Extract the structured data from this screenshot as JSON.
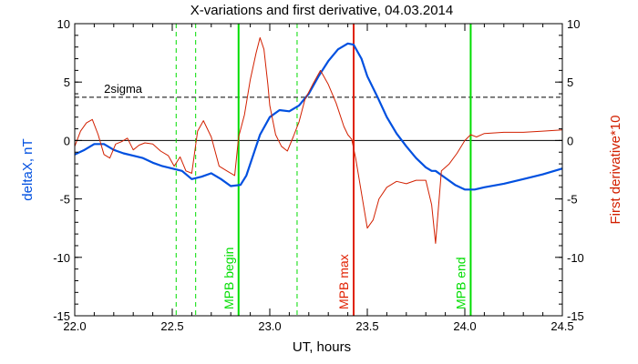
{
  "chart_data": {
    "type": "line",
    "title": "X-variations and first derivative, 04.03.2014",
    "xlabel": "UT, hours",
    "ylabel_left": "deltaX, nT",
    "ylabel_right": "First derivative*10",
    "xlim": [
      22.0,
      24.5
    ],
    "ylim": [
      -15,
      10
    ],
    "x_ticks": [
      "22.0",
      "22.5",
      "23.0",
      "23.5",
      "24.0",
      "24.5"
    ],
    "y_ticks_left": [
      "10",
      "5",
      "0",
      "-5",
      "-10",
      "-15"
    ],
    "y_ticks_right": [
      "10",
      "5",
      "0",
      "-5",
      "-10",
      "-15"
    ],
    "sigma": {
      "label": "2sigma",
      "value": 3.7
    },
    "zero_line": 0,
    "colors": {
      "deltaX": "#0050e0",
      "derivative": "#d22000",
      "green": "#00dd00",
      "red": "#e02000"
    },
    "series": [
      {
        "key": "deltaX",
        "axis": "left",
        "x": [
          22.0,
          22.05,
          22.1,
          22.15,
          22.2,
          22.25,
          22.3,
          22.35,
          22.4,
          22.45,
          22.5,
          22.55,
          22.6,
          22.65,
          22.7,
          22.75,
          22.8,
          22.85,
          22.88,
          22.92,
          22.95,
          23.0,
          23.05,
          23.1,
          23.15,
          23.2,
          23.25,
          23.3,
          23.35,
          23.4,
          23.43,
          23.47,
          23.5,
          23.55,
          23.6,
          23.65,
          23.7,
          23.75,
          23.8,
          23.83,
          23.85,
          23.9,
          23.95,
          24.0,
          24.05,
          24.1,
          24.2,
          24.3,
          24.4,
          24.5
        ],
        "y": [
          -1.2,
          -0.8,
          -0.3,
          -0.3,
          -0.8,
          -1.1,
          -1.3,
          -1.5,
          -1.9,
          -2.2,
          -2.4,
          -2.6,
          -3.3,
          -3.1,
          -2.8,
          -3.3,
          -3.9,
          -3.8,
          -3.0,
          -1.0,
          0.5,
          2.0,
          2.6,
          2.5,
          3.0,
          4.0,
          5.5,
          6.8,
          7.8,
          8.3,
          8.2,
          7.0,
          5.5,
          3.8,
          2.0,
          0.6,
          -0.5,
          -1.5,
          -2.3,
          -2.6,
          -2.6,
          -3.2,
          -3.8,
          -4.2,
          -4.2,
          -4.0,
          -3.7,
          -3.3,
          -2.9,
          -2.4
        ]
      },
      {
        "key": "derivative",
        "axis": "right",
        "x": [
          22.0,
          22.03,
          22.06,
          22.09,
          22.12,
          22.15,
          22.18,
          22.21,
          22.24,
          22.27,
          22.3,
          22.33,
          22.36,
          22.4,
          22.44,
          22.48,
          22.51,
          22.54,
          22.57,
          22.6,
          22.63,
          22.66,
          22.7,
          22.74,
          22.78,
          22.82,
          22.84,
          22.87,
          22.9,
          22.93,
          22.95,
          22.97,
          22.99,
          23.0,
          23.03,
          23.06,
          23.09,
          23.12,
          23.15,
          23.18,
          23.22,
          23.26,
          23.3,
          23.34,
          23.38,
          23.4,
          23.42,
          23.44,
          23.47,
          23.5,
          23.53,
          23.56,
          23.6,
          23.65,
          23.7,
          23.75,
          23.8,
          23.83,
          23.85,
          23.88,
          23.92,
          23.96,
          24.0,
          24.03,
          24.06,
          24.1,
          24.2,
          24.3,
          24.4,
          24.5
        ],
        "y": [
          -0.5,
          0.8,
          1.5,
          1.8,
          0.5,
          -1.2,
          -1.5,
          -0.3,
          -0.1,
          0.2,
          -0.8,
          -0.4,
          -0.2,
          -0.3,
          -0.9,
          -1.3,
          -2.2,
          -1.4,
          -2.6,
          -2.8,
          0.8,
          1.7,
          0.3,
          -2.2,
          -2.6,
          -3.0,
          0.3,
          2.2,
          5.2,
          7.5,
          8.8,
          7.8,
          4.8,
          3.0,
          0.5,
          -0.5,
          -0.9,
          0.3,
          1.6,
          3.5,
          4.8,
          6.0,
          4.8,
          3.2,
          1.2,
          0.5,
          0.1,
          -1.5,
          -4.5,
          -7.5,
          -6.8,
          -5.0,
          -4.0,
          -3.5,
          -3.7,
          -3.4,
          -3.4,
          -5.5,
          -8.8,
          -2.6,
          -2.0,
          -1.1,
          0.0,
          0.5,
          0.3,
          0.6,
          0.7,
          0.7,
          0.8,
          0.9
        ]
      }
    ],
    "vertical_lines": [
      {
        "x": 22.52,
        "style": "dashed",
        "color": "green"
      },
      {
        "x": 22.62,
        "style": "dashed",
        "color": "green"
      },
      {
        "x": 23.14,
        "style": "dashed",
        "color": "green"
      },
      {
        "x": 22.84,
        "style": "solid",
        "color": "green",
        "label": "MPB begin"
      },
      {
        "x": 23.43,
        "style": "solid",
        "color": "red",
        "label": "MPB max"
      },
      {
        "x": 24.03,
        "style": "solid",
        "color": "green",
        "label": "MPB end"
      }
    ]
  }
}
